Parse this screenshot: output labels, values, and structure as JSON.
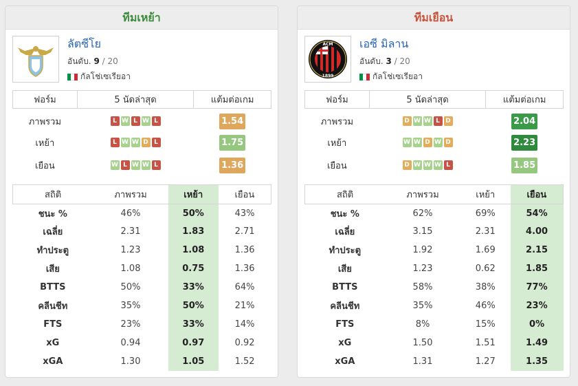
{
  "panels": [
    {
      "header": "ทีมเหย้า",
      "team_name": "ลัตซีโย",
      "rank_label": "อันดับ.",
      "rank": "9",
      "rank_total": "20",
      "country": "กัลโช่เซเรียอา",
      "logo_icon": "lazio-eagle-crest-icon",
      "form_headers": [
        "ฟอร์ม",
        "5 นัดล่าสุด",
        "แต้มต่อเกม"
      ],
      "form_rows": [
        {
          "label": "ภาพรวม",
          "results": [
            "L",
            "W",
            "L",
            "W",
            "L"
          ],
          "ppg": "1.54",
          "ppg_color": "#dfa75c"
        },
        {
          "label": "เหย้า",
          "results": [
            "L",
            "W",
            "W",
            "D",
            "L"
          ],
          "ppg": "1.75",
          "ppg_color": "#95c77f"
        },
        {
          "label": "เยือน",
          "results": [
            "W",
            "L",
            "W",
            "W",
            "L"
          ],
          "ppg": "1.36",
          "ppg_color": "#dfa75c"
        }
      ],
      "stats_headers": [
        "สถิติ",
        "ภาพรวม",
        "เหย้า",
        "เยือน"
      ],
      "highlight_col": 2,
      "stats_rows": [
        {
          "label": "ชนะ %",
          "values": [
            "46%",
            "50%",
            "43%"
          ]
        },
        {
          "label": "เฉลี่ย",
          "values": [
            "2.31",
            "1.83",
            "2.71"
          ]
        },
        {
          "label": "ทำประตู",
          "values": [
            "1.23",
            "1.08",
            "1.36"
          ]
        },
        {
          "label": "เสีย",
          "values": [
            "1.08",
            "0.75",
            "1.36"
          ]
        },
        {
          "label": "BTTS",
          "values": [
            "50%",
            "33%",
            "64%"
          ]
        },
        {
          "label": "คลีนชีท",
          "values": [
            "35%",
            "50%",
            "21%"
          ]
        },
        {
          "label": "FTS",
          "values": [
            "23%",
            "33%",
            "14%"
          ]
        },
        {
          "label": "xG",
          "values": [
            "0.94",
            "0.97",
            "0.92"
          ]
        },
        {
          "label": "xGA",
          "values": [
            "1.30",
            "1.05",
            "1.52"
          ]
        }
      ]
    },
    {
      "header": "ทีมเยือน",
      "team_name": "เอซี มิลาน",
      "rank_label": "อันดับ.",
      "rank": "3",
      "rank_total": "20",
      "country": "กัลโช่เซเรียอา",
      "logo_icon": "ac-milan-crest-icon",
      "logo_text_top": "ACM",
      "logo_text_bottom": "1899",
      "form_headers": [
        "ฟอร์ม",
        "5 นัดล่าสุด",
        "แต้มต่อเกม"
      ],
      "form_rows": [
        {
          "label": "ภาพรวม",
          "results": [
            "D",
            "W",
            "W",
            "L",
            "D"
          ],
          "ppg": "2.04",
          "ppg_color": "#3a9a48"
        },
        {
          "label": "เหย้า",
          "results": [
            "W",
            "W",
            "D",
            "W",
            "D"
          ],
          "ppg": "2.23",
          "ppg_color": "#2f8a3d"
        },
        {
          "label": "เยือน",
          "results": [
            "D",
            "W",
            "W",
            "W",
            "L"
          ],
          "ppg": "1.85",
          "ppg_color": "#95c77f"
        }
      ],
      "stats_headers": [
        "สถิติ",
        "ภาพรวม",
        "เหย้า",
        "เยือน"
      ],
      "highlight_col": 3,
      "stats_rows": [
        {
          "label": "ชนะ %",
          "values": [
            "62%",
            "69%",
            "54%"
          ]
        },
        {
          "label": "เฉลี่ย",
          "values": [
            "3.15",
            "2.31",
            "4.00"
          ]
        },
        {
          "label": "ทำประตู",
          "values": [
            "1.92",
            "1.69",
            "2.15"
          ]
        },
        {
          "label": "เสีย",
          "values": [
            "1.23",
            "0.62",
            "1.85"
          ]
        },
        {
          "label": "BTTS",
          "values": [
            "58%",
            "38%",
            "77%"
          ]
        },
        {
          "label": "คลีนชีท",
          "values": [
            "35%",
            "46%",
            "23%"
          ]
        },
        {
          "label": "FTS",
          "values": [
            "8%",
            "15%",
            "0%"
          ]
        },
        {
          "label": "xG",
          "values": [
            "1.50",
            "1.51",
            "1.49"
          ]
        },
        {
          "label": "xGA",
          "values": [
            "1.31",
            "1.27",
            "1.35"
          ]
        }
      ]
    }
  ],
  "flag_colors": [
    "#009246",
    "#ffffff",
    "#ce2b37"
  ],
  "flag_icon": "italy-flag-icon"
}
